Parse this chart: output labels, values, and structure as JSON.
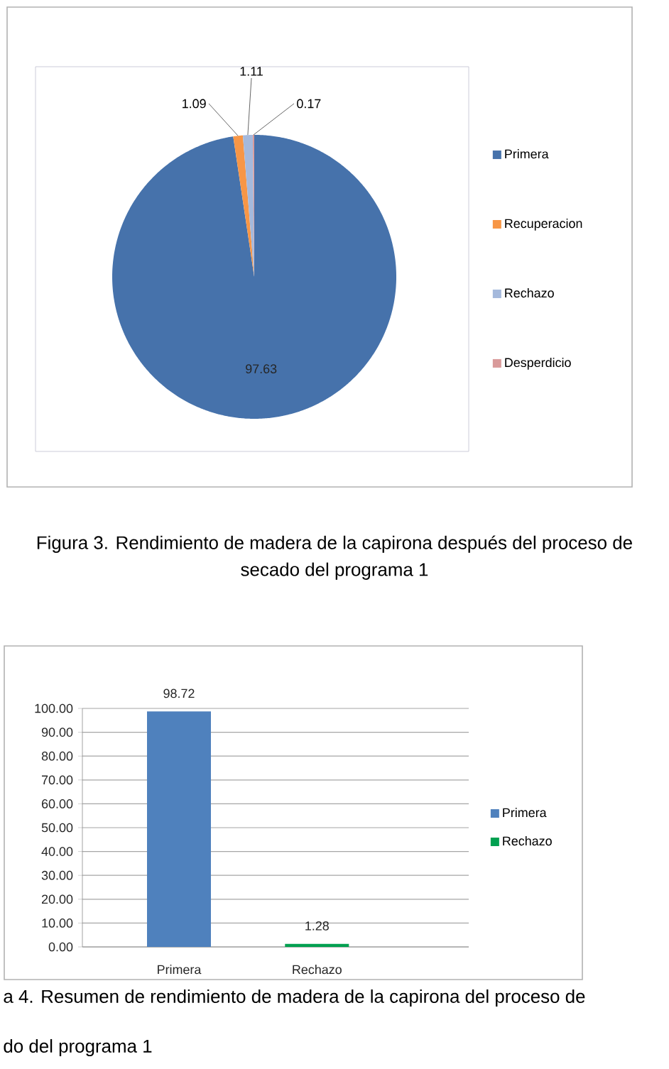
{
  "chart_data": [
    {
      "type": "pie",
      "categories": [
        "Primera",
        "Recuperacion",
        "Rechazo",
        "Desperdicio"
      ],
      "values": [
        97.63,
        1.09,
        1.11,
        0.17
      ],
      "colors": [
        "#4672ab",
        "#f79646",
        "#a5b9dc",
        "#d99a9a"
      ],
      "data_labels": true,
      "legend": "right",
      "annotations": [
        "Figura 3. Rendimiento de madera de la capirona después del proceso de secado del programa 1"
      ]
    },
    {
      "type": "bar",
      "categories": [
        "Primera",
        "Rechazo"
      ],
      "series": [
        {
          "name": "Primera",
          "color": "#4f81bd",
          "values": [
            98.72,
            null
          ]
        },
        {
          "name": "Rechazo",
          "color": "#00a050",
          "values": [
            null,
            1.28
          ]
        }
      ],
      "ylim": [
        0,
        100
      ],
      "yticks": [
        {
          "value": 0,
          "label": "0.00"
        },
        {
          "value": 10,
          "label": "10.00"
        },
        {
          "value": 20,
          "label": "20.00"
        },
        {
          "value": 30,
          "label": "30.00"
        },
        {
          "value": 40,
          "label": "40.00"
        },
        {
          "value": 50,
          "label": "50.00"
        },
        {
          "value": 60,
          "label": "60.00"
        },
        {
          "value": 70,
          "label": "70.00"
        },
        {
          "value": 80,
          "label": "80.00"
        },
        {
          "value": 90,
          "label": "90.00"
        },
        {
          "value": 100,
          "label": "100.00"
        }
      ],
      "grid": "y",
      "data_labels": true,
      "legend": "right",
      "annotations": [
        "a 4. Resumen de rendimiento de madera de la capirona del proceso de",
        "do del programa 1"
      ]
    }
  ]
}
